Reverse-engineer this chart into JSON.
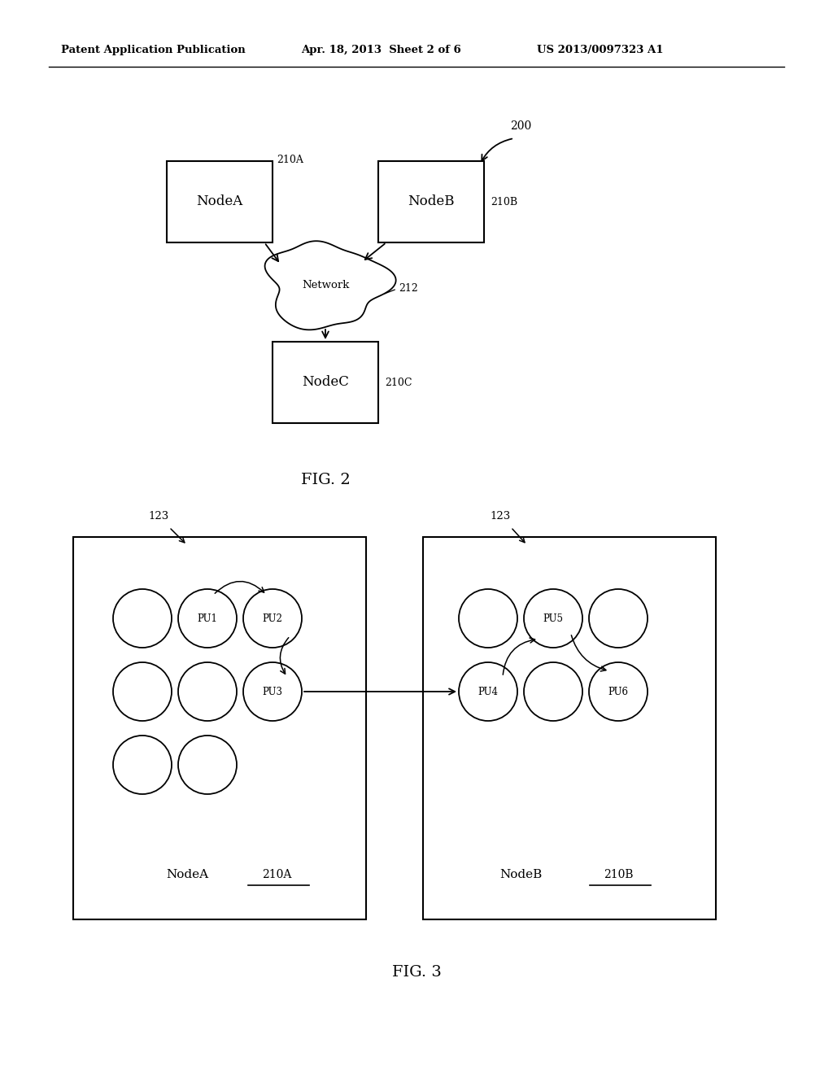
{
  "bg_color": "#ffffff",
  "header_left": "Patent Application Publication",
  "header_mid": "Apr. 18, 2013  Sheet 2 of 6",
  "header_right": "US 2013/0097323 A1",
  "fig2_label": "FIG. 2",
  "fig3_label": "FIG. 3",
  "fig2_200_label": "200",
  "fig2_nodeA_label": "NodeA",
  "fig2_nodeB_label": "NodeB",
  "fig2_nodeC_label": "NodeC",
  "fig2_210A_label": "210A",
  "fig2_210B_label": "210B",
  "fig2_210C_label": "210C",
  "fig2_network_label": "Network",
  "fig2_212_label": "212",
  "fig3_nodeA_label": "NodeA",
  "fig3_nodeB_label": "NodeB",
  "fig3_210A_label": "210A",
  "fig3_210B_label": "210B",
  "fig3_123_label": "123"
}
